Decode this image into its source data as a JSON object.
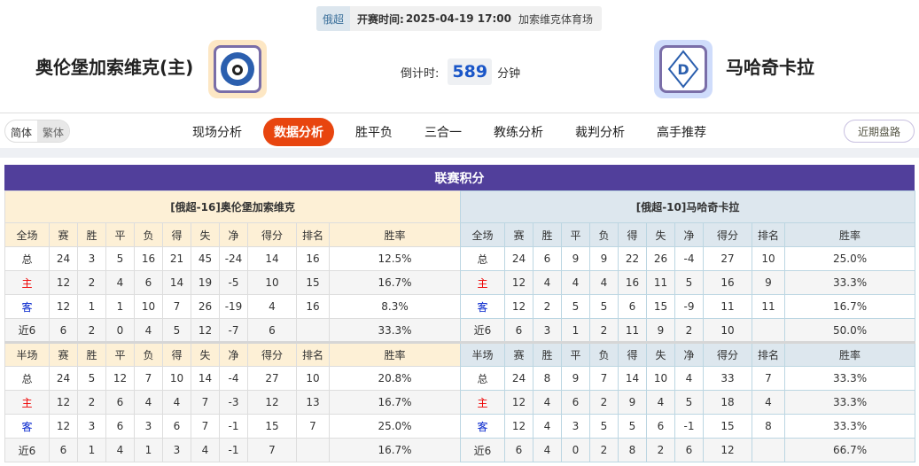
{
  "match": {
    "league": "俄超",
    "time_label": "开赛时间:",
    "time": "2025-04-19 17:00",
    "venue": "加索维克体育场"
  },
  "home": {
    "name": "奥伦堡加索维克(主)",
    "logo_bg": "#fde7c4"
  },
  "away": {
    "name": "马哈奇卡拉",
    "logo_bg": "#cfdcfb"
  },
  "countdown": {
    "label": "倒计时:",
    "value": "589",
    "unit": "分钟"
  },
  "lang": {
    "simplified": "简体",
    "traditional": "繁体"
  },
  "nav": [
    "现场分析",
    "数据分析",
    "胜平负",
    "三合一",
    "教练分析",
    "裁判分析",
    "高手推荐"
  ],
  "nav_active": 1,
  "recent_button": "近期盘路",
  "section_title": "联赛积分",
  "columns_full": [
    "全场",
    "赛",
    "胜",
    "平",
    "负",
    "得",
    "失",
    "净",
    "得分",
    "排名",
    "胜率"
  ],
  "columns_half": [
    "半场",
    "赛",
    "胜",
    "平",
    "负",
    "得",
    "失",
    "净",
    "得分",
    "排名",
    "胜率"
  ],
  "tables": [
    {
      "caption": "[俄超-16]奥伦堡加索维克",
      "full": [
        [
          "总",
          "24",
          "3",
          "5",
          "16",
          "21",
          "45",
          "-24",
          "14",
          "16",
          "12.5%"
        ],
        [
          "主",
          "12",
          "2",
          "4",
          "6",
          "14",
          "19",
          "-5",
          "10",
          "15",
          "16.7%"
        ],
        [
          "客",
          "12",
          "1",
          "1",
          "10",
          "7",
          "26",
          "-19",
          "4",
          "16",
          "8.3%"
        ],
        [
          "近6",
          "6",
          "2",
          "0",
          "4",
          "5",
          "12",
          "-7",
          "6",
          "",
          "33.3%"
        ]
      ],
      "half": [
        [
          "总",
          "24",
          "5",
          "12",
          "7",
          "10",
          "14",
          "-4",
          "27",
          "10",
          "20.8%"
        ],
        [
          "主",
          "12",
          "2",
          "6",
          "4",
          "4",
          "7",
          "-3",
          "12",
          "13",
          "16.7%"
        ],
        [
          "客",
          "12",
          "3",
          "6",
          "3",
          "6",
          "7",
          "-1",
          "15",
          "7",
          "25.0%"
        ],
        [
          "近6",
          "6",
          "1",
          "4",
          "1",
          "3",
          "4",
          "-1",
          "7",
          "",
          "16.7%"
        ]
      ]
    },
    {
      "caption": "[俄超-10]马哈奇卡拉",
      "full": [
        [
          "总",
          "24",
          "6",
          "9",
          "9",
          "22",
          "26",
          "-4",
          "27",
          "10",
          "25.0%"
        ],
        [
          "主",
          "12",
          "4",
          "4",
          "4",
          "16",
          "11",
          "5",
          "16",
          "9",
          "33.3%"
        ],
        [
          "客",
          "12",
          "2",
          "5",
          "5",
          "6",
          "15",
          "-9",
          "11",
          "11",
          "16.7%"
        ],
        [
          "近6",
          "6",
          "3",
          "1",
          "2",
          "11",
          "9",
          "2",
          "10",
          "",
          "50.0%"
        ]
      ],
      "half": [
        [
          "总",
          "24",
          "8",
          "9",
          "7",
          "14",
          "10",
          "4",
          "33",
          "7",
          "33.3%"
        ],
        [
          "主",
          "12",
          "4",
          "6",
          "2",
          "9",
          "4",
          "5",
          "18",
          "4",
          "33.3%"
        ],
        [
          "客",
          "12",
          "4",
          "3",
          "5",
          "5",
          "6",
          "-1",
          "15",
          "8",
          "33.3%"
        ],
        [
          "近6",
          "6",
          "4",
          "0",
          "2",
          "8",
          "2",
          "6",
          "12",
          "",
          "66.7%"
        ]
      ]
    }
  ]
}
